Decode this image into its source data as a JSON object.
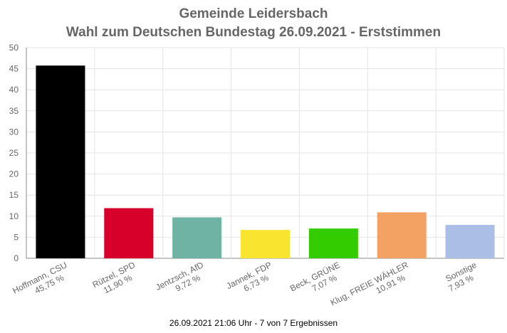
{
  "title_line1": "Gemeinde Leidersbach",
  "title_line2": "Wahl zum Deutschen Bundestag 26.09.2021  - Erststimmen",
  "footer": "26.09.2021 21:06 Uhr - 7 von 7 Ergebnissen",
  "chart_data": {
    "type": "bar",
    "title": "Gemeinde Leidersbach\nWahl zum Deutschen Bundestag 26.09.2021  - Erststimmen",
    "categories": [
      {
        "name": "Hoffmann, CSU",
        "label": "45,75 %"
      },
      {
        "name": "Rützel, SPD",
        "label": "11,90 %"
      },
      {
        "name": "Jentzsch, AfD",
        "label": "9,72 %"
      },
      {
        "name": "Jannek, FDP",
        "label": "6,73 %"
      },
      {
        "name": "Beck, GRÜNE",
        "label": "7,07 %"
      },
      {
        "name": "Klug, FREIE WÄHLER",
        "label": "10,91 %"
      },
      {
        "name": "Sonstige",
        "label": "7,93 %"
      }
    ],
    "values": [
      45.75,
      11.9,
      9.72,
      6.73,
      7.07,
      10.91,
      7.93
    ],
    "colors": [
      "#000000",
      "#d7002b",
      "#6fb3a4",
      "#f9e52f",
      "#33cc00",
      "#f4a264",
      "#abbee6"
    ],
    "ylim": [
      0,
      50
    ],
    "yticks": [
      0,
      5,
      10,
      15,
      20,
      25,
      30,
      35,
      40,
      45,
      50
    ],
    "grid": true,
    "xlabel": "",
    "ylabel": ""
  }
}
